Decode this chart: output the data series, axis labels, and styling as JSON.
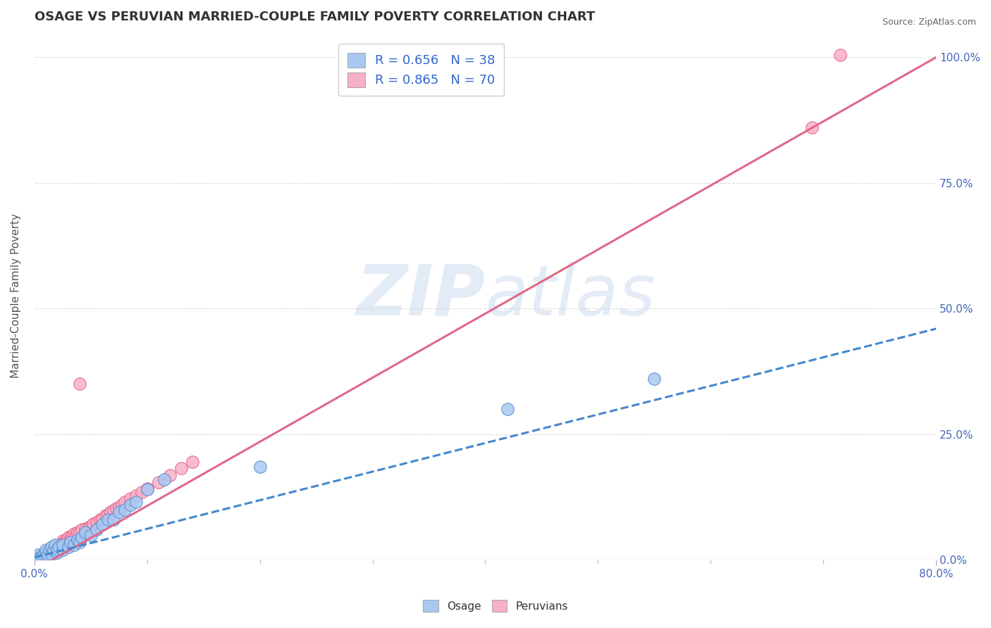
{
  "title": "OSAGE VS PERUVIAN MARRIED-COUPLE FAMILY POVERTY CORRELATION CHART",
  "source": "Source: ZipAtlas.com",
  "ylabel": "Married-Couple Family Poverty",
  "legend_label1": "Osage",
  "legend_label2": "Peruvians",
  "R_osage": 0.656,
  "N_osage": 38,
  "R_peruvian": 0.865,
  "N_peruvian": 70,
  "osage_color": "#a8c8f0",
  "peruvian_color": "#f8b0c8",
  "osage_edge_color": "#5588cc",
  "peruvian_edge_color": "#e06080",
  "osage_line_color": "#4488cc",
  "peruvian_line_color": "#e06888",
  "watermark_color": "#d0ddf0",
  "background_color": "#ffffff",
  "grid_color": "#dddddd",
  "xmin": 0.0,
  "xmax": 0.8,
  "ymin": 0.0,
  "ymax": 1.05,
  "osage_trend_x0": 0.0,
  "osage_trend_y0": 0.005,
  "osage_trend_x1": 0.8,
  "osage_trend_y1": 0.46,
  "peruvian_trend_x0": 0.0,
  "peruvian_trend_y0": -0.02,
  "peruvian_trend_x1": 0.8,
  "peruvian_trend_y1": 1.0,
  "osage_scatter_x": [
    0.003,
    0.005,
    0.007,
    0.008,
    0.01,
    0.01,
    0.012,
    0.013,
    0.015,
    0.015,
    0.017,
    0.018,
    0.02,
    0.02,
    0.022,
    0.025,
    0.025,
    0.03,
    0.032,
    0.035,
    0.038,
    0.04,
    0.042,
    0.045,
    0.05,
    0.055,
    0.06,
    0.065,
    0.07,
    0.075,
    0.08,
    0.085,
    0.09,
    0.1,
    0.115,
    0.2,
    0.42,
    0.55
  ],
  "osage_scatter_y": [
    0.01,
    0.005,
    0.008,
    0.012,
    0.015,
    0.02,
    0.01,
    0.018,
    0.012,
    0.025,
    0.02,
    0.03,
    0.015,
    0.022,
    0.025,
    0.02,
    0.03,
    0.025,
    0.035,
    0.03,
    0.04,
    0.035,
    0.045,
    0.055,
    0.05,
    0.06,
    0.07,
    0.08,
    0.08,
    0.095,
    0.1,
    0.11,
    0.115,
    0.14,
    0.16,
    0.185,
    0.3,
    0.36
  ],
  "peruvian_scatter_x": [
    0.001,
    0.002,
    0.003,
    0.004,
    0.005,
    0.005,
    0.006,
    0.007,
    0.008,
    0.008,
    0.009,
    0.01,
    0.01,
    0.011,
    0.012,
    0.013,
    0.014,
    0.015,
    0.015,
    0.016,
    0.017,
    0.018,
    0.018,
    0.019,
    0.02,
    0.02,
    0.021,
    0.022,
    0.023,
    0.025,
    0.025,
    0.026,
    0.027,
    0.028,
    0.03,
    0.03,
    0.032,
    0.033,
    0.035,
    0.035,
    0.037,
    0.038,
    0.04,
    0.042,
    0.045,
    0.048,
    0.05,
    0.052,
    0.055,
    0.058,
    0.06,
    0.063,
    0.065,
    0.068,
    0.07,
    0.073,
    0.075,
    0.078,
    0.08,
    0.085,
    0.09,
    0.095,
    0.1,
    0.11,
    0.12,
    0.13,
    0.14,
    0.04,
    0.69,
    0.715
  ],
  "peruvian_scatter_y": [
    0.002,
    0.004,
    0.003,
    0.005,
    0.006,
    0.008,
    0.007,
    0.009,
    0.008,
    0.011,
    0.01,
    0.012,
    0.015,
    0.013,
    0.016,
    0.015,
    0.017,
    0.016,
    0.02,
    0.018,
    0.022,
    0.02,
    0.025,
    0.023,
    0.022,
    0.028,
    0.026,
    0.03,
    0.028,
    0.032,
    0.038,
    0.034,
    0.036,
    0.04,
    0.038,
    0.045,
    0.042,
    0.048,
    0.045,
    0.052,
    0.05,
    0.055,
    0.055,
    0.06,
    0.062,
    0.065,
    0.068,
    0.072,
    0.075,
    0.08,
    0.082,
    0.088,
    0.09,
    0.095,
    0.098,
    0.102,
    0.105,
    0.11,
    0.115,
    0.122,
    0.128,
    0.135,
    0.142,
    0.155,
    0.168,
    0.182,
    0.195,
    0.35,
    0.86,
    1.005
  ],
  "title_fontsize": 13,
  "label_fontsize": 11,
  "tick_fontsize": 11,
  "legend_fontsize": 13
}
